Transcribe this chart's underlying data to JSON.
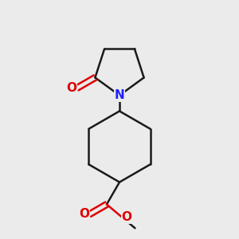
{
  "bg_color": "#ebebeb",
  "bond_color": "#1a1a1a",
  "N_color": "#2020ff",
  "O_color": "#dd0000",
  "line_width": 1.8,
  "figsize": [
    3.0,
    3.0
  ],
  "dpi": 100,
  "xlim": [
    -1.6,
    1.6
  ],
  "ylim": [
    -2.4,
    2.4
  ]
}
